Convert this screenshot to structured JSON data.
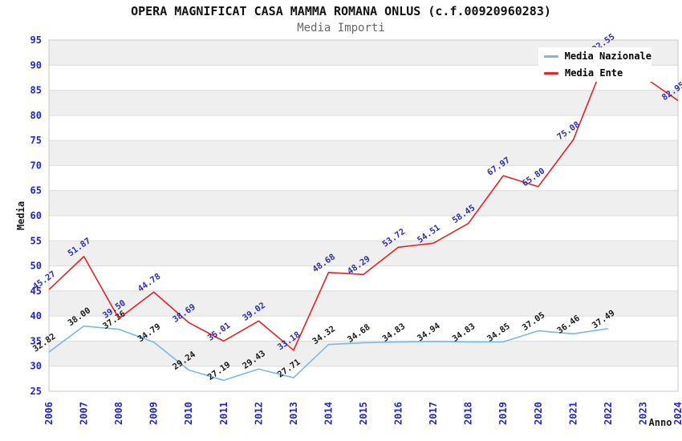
{
  "title": "OPERA MAGNIFICAT CASA MAMMA ROMANA ONLUS (c.f.00920960283)",
  "subtitle": "Media Importi",
  "chart_data": {
    "type": "line",
    "x": [
      "2006",
      "2007",
      "2008",
      "2009",
      "2010",
      "2011",
      "2012",
      "2013",
      "2014",
      "2015",
      "2016",
      "2017",
      "2018",
      "2019",
      "2020",
      "2021",
      "2022",
      "2023",
      "2024"
    ],
    "series": [
      {
        "name": "Media Nazionale",
        "color": "#7db7e8",
        "label_color": "#1a1a1a",
        "values": [
          32.82,
          38.0,
          37.36,
          34.79,
          29.24,
          27.19,
          29.43,
          27.71,
          34.32,
          34.68,
          34.83,
          34.94,
          34.83,
          34.85,
          37.05,
          36.46,
          37.49,
          null,
          null
        ]
      },
      {
        "name": "Media Ente",
        "color": "#e62222",
        "label_color": "#2d2db8",
        "values": [
          45.27,
          51.87,
          39.5,
          44.78,
          38.69,
          35.01,
          39.02,
          33.18,
          48.68,
          48.29,
          53.72,
          54.51,
          58.45,
          67.97,
          65.8,
          75.08,
          92.55,
          null,
          82.95
        ]
      }
    ],
    "xlabel": "Anno",
    "ylabel": "Media",
    "ylim": [
      25,
      95
    ],
    "ytick_step": 5,
    "grid": "horizontal-bands",
    "legend_position": "top-right",
    "band_colors": [
      "#ffffff",
      "#efefef"
    ],
    "grid_line_color": "#dcdcdc",
    "plot_border_color": "#c9c9c9",
    "tick_label_color": "#2323cc",
    "axis_title_color": "#1a1a1a",
    "title_color": "#111111",
    "subtitle_color": "#666666"
  }
}
